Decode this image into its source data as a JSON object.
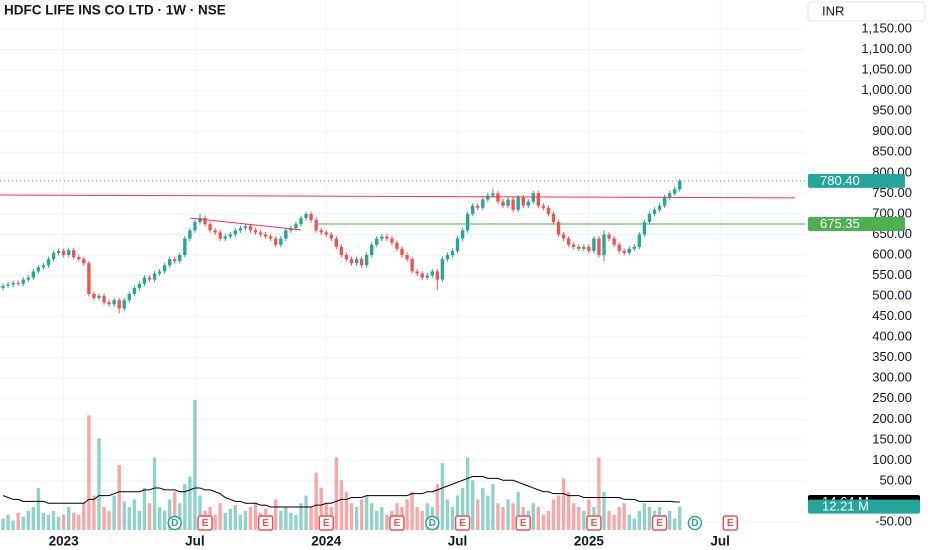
{
  "chart_data": {
    "type": "candlestick",
    "title": "HDFC LIFE INS CO LTD · 1W · NSE",
    "currency": "INR",
    "up_color": "#26a69a",
    "down_color": "#ef5350",
    "grid": true,
    "x": [
      0,
      1,
      2,
      3,
      4,
      5,
      6,
      7,
      8,
      9,
      10,
      11,
      12,
      13,
      14,
      15,
      16,
      17,
      18,
      19,
      20,
      21,
      22,
      23,
      24,
      25,
      26,
      27,
      28,
      29,
      30,
      31,
      32,
      33,
      34,
      35,
      36,
      37,
      38,
      39,
      40,
      41,
      42,
      43,
      44,
      45,
      46,
      47,
      48,
      49,
      50,
      51,
      52,
      53,
      54,
      55,
      56,
      57,
      58,
      59,
      60,
      61,
      62,
      63,
      64,
      65,
      66,
      67,
      68,
      69,
      70,
      71,
      72,
      73,
      74,
      75,
      76,
      77,
      78,
      79,
      80,
      81,
      82,
      83,
      84,
      85,
      86,
      87,
      88,
      89,
      90,
      91,
      92,
      93,
      94,
      95,
      96,
      97,
      98,
      99,
      100,
      101,
      102,
      103,
      104,
      105,
      106,
      107,
      108,
      109,
      110,
      111,
      112,
      113,
      114,
      115,
      116,
      117,
      118,
      119,
      120,
      121,
      122,
      123,
      124,
      125,
      126,
      127,
      128,
      129,
      130,
      131,
      132,
      133,
      134
    ],
    "open": [
      520,
      525,
      528,
      532,
      530,
      540,
      545,
      560,
      570,
      575,
      590,
      605,
      610,
      600,
      612,
      595,
      590,
      580,
      505,
      495,
      500,
      485,
      480,
      490,
      470,
      490,
      505,
      520,
      530,
      545,
      540,
      555,
      560,
      575,
      590,
      585,
      600,
      640,
      660,
      680,
      690,
      675,
      660,
      655,
      640,
      645,
      650,
      660,
      665,
      670,
      660,
      655,
      650,
      645,
      640,
      625,
      640,
      660,
      665,
      675,
      690,
      700,
      685,
      660,
      655,
      650,
      640,
      620,
      600,
      590,
      580,
      590,
      575,
      600,
      625,
      640,
      645,
      640,
      630,
      615,
      600,
      590,
      560,
      555,
      545,
      550,
      560,
      540,
      590,
      600,
      610,
      640,
      660,
      700,
      720,
      715,
      735,
      745,
      750,
      730,
      720,
      735,
      710,
      740,
      720,
      730,
      750,
      720,
      715,
      700,
      680,
      650,
      640,
      625,
      620,
      615,
      620,
      610,
      640,
      600,
      650,
      640,
      625,
      610,
      605,
      615,
      620,
      650,
      680,
      700,
      710,
      720,
      740,
      750,
      760
    ],
    "high": [
      531,
      534,
      538,
      538,
      546,
      551,
      566,
      576,
      581,
      596,
      611,
      616,
      616,
      618,
      618,
      601,
      596,
      586,
      511,
      506,
      506,
      491,
      496,
      496,
      496,
      511,
      526,
      536,
      551,
      551,
      561,
      566,
      581,
      596,
      596,
      606,
      646,
      666,
      686,
      700,
      696,
      681,
      666,
      661,
      651,
      656,
      666,
      671,
      676,
      676,
      666,
      661,
      656,
      651,
      646,
      646,
      666,
      671,
      681,
      696,
      706,
      706,
      691,
      666,
      661,
      656,
      646,
      626,
      606,
      596,
      596,
      596,
      606,
      631,
      646,
      651,
      651,
      646,
      636,
      621,
      606,
      596,
      566,
      561,
      556,
      566,
      566,
      596,
      606,
      616,
      646,
      666,
      706,
      726,
      726,
      741,
      751,
      762,
      756,
      736,
      741,
      741,
      746,
      746,
      736,
      756,
      756,
      726,
      721,
      706,
      686,
      656,
      646,
      631,
      626,
      626,
      626,
      646,
      646,
      660,
      656,
      646,
      631,
      616,
      621,
      626,
      656,
      686,
      706,
      716,
      726,
      746,
      756,
      766,
      786
    ],
    "low": [
      514,
      519,
      522,
      524,
      524,
      534,
      539,
      554,
      564,
      569,
      584,
      599,
      594,
      594,
      589,
      584,
      574,
      499,
      489,
      489,
      479,
      474,
      474,
      458,
      464,
      484,
      499,
      514,
      524,
      534,
      534,
      549,
      554,
      569,
      579,
      579,
      594,
      634,
      654,
      674,
      669,
      654,
      649,
      634,
      634,
      639,
      644,
      654,
      659,
      654,
      649,
      644,
      639,
      634,
      619,
      619,
      634,
      654,
      659,
      669,
      684,
      679,
      654,
      649,
      644,
      634,
      614,
      594,
      584,
      574,
      574,
      569,
      569,
      594,
      619,
      634,
      634,
      624,
      609,
      594,
      584,
      554,
      549,
      539,
      539,
      544,
      515,
      534,
      584,
      594,
      604,
      634,
      654,
      694,
      709,
      709,
      729,
      739,
      724,
      714,
      714,
      704,
      704,
      714,
      714,
      724,
      714,
      709,
      694,
      674,
      644,
      634,
      619,
      614,
      609,
      609,
      604,
      604,
      594,
      585,
      634,
      619,
      604,
      599,
      599,
      609,
      614,
      644,
      674,
      694,
      704,
      714,
      734,
      744,
      754
    ],
    "close": [
      525,
      528,
      532,
      530,
      540,
      545,
      560,
      570,
      575,
      590,
      605,
      610,
      600,
      612,
      595,
      590,
      580,
      505,
      495,
      500,
      485,
      480,
      490,
      470,
      490,
      505,
      520,
      530,
      545,
      540,
      555,
      560,
      575,
      590,
      585,
      600,
      640,
      660,
      680,
      690,
      675,
      660,
      655,
      640,
      645,
      650,
      660,
      665,
      670,
      660,
      655,
      650,
      645,
      640,
      625,
      640,
      660,
      665,
      675,
      690,
      700,
      685,
      660,
      655,
      650,
      640,
      620,
      600,
      590,
      580,
      590,
      575,
      600,
      625,
      640,
      645,
      640,
      630,
      615,
      600,
      590,
      560,
      555,
      545,
      550,
      560,
      540,
      590,
      600,
      610,
      640,
      660,
      700,
      720,
      715,
      735,
      745,
      750,
      730,
      720,
      735,
      710,
      740,
      720,
      730,
      750,
      720,
      715,
      700,
      680,
      650,
      640,
      625,
      620,
      615,
      620,
      610,
      640,
      600,
      650,
      640,
      625,
      610,
      605,
      615,
      620,
      650,
      680,
      700,
      710,
      720,
      740,
      750,
      760,
      780.4
    ],
    "xlim": [
      -0.6,
      158.8
    ],
    "xticks": [
      {
        "value": 12,
        "label": "2023"
      },
      {
        "value": 38,
        "label": "Jul"
      },
      {
        "value": 64,
        "label": "2024"
      },
      {
        "value": 90,
        "label": "Jul"
      },
      {
        "value": 116,
        "label": "2025"
      },
      {
        "value": 142,
        "label": "Jul"
      }
    ],
    "ylim": [
      -69.3,
      1220.6
    ],
    "yticks": [
      {
        "value": 1150,
        "label": "1,150.00"
      },
      {
        "value": 1100,
        "label": "1,100.00"
      },
      {
        "value": 1050,
        "label": "1,050.00"
      },
      {
        "value": 1000,
        "label": "1,000.00"
      },
      {
        "value": 950,
        "label": "950.00"
      },
      {
        "value": 900,
        "label": "900.00"
      },
      {
        "value": 850,
        "label": "850.00"
      },
      {
        "value": 800,
        "label": "800.00"
      },
      {
        "value": 750,
        "label": "750.00"
      },
      {
        "value": 700,
        "label": "700.00"
      },
      {
        "value": 650,
        "label": "650.00"
      },
      {
        "value": 600,
        "label": "600.00"
      },
      {
        "value": 550,
        "label": "550.00"
      },
      {
        "value": 500,
        "label": "500.00"
      },
      {
        "value": 450,
        "label": "450.00"
      },
      {
        "value": 400,
        "label": "400.00"
      },
      {
        "value": 350,
        "label": "350.00"
      },
      {
        "value": 300,
        "label": "300.00"
      },
      {
        "value": 250,
        "label": "250.00"
      },
      {
        "value": 200,
        "label": "200.00"
      },
      {
        "value": 150,
        "label": "150.00"
      },
      {
        "value": 100,
        "label": "100.00"
      },
      {
        "value": 50,
        "label": "50.00"
      },
      {
        "value": -50,
        "label": "-50.00"
      }
    ],
    "price_labels": [
      {
        "value": 780.4,
        "label": "780.40",
        "color": "#26a69a"
      },
      {
        "value": 675.35,
        "label": "675.35",
        "color": "#4caf50"
      }
    ],
    "lines": [
      {
        "color": "#f23645",
        "x": [
          -0.6,
          156.8
        ],
        "y": [
          746,
          739
        ]
      },
      {
        "color": "#f23645",
        "x": [
          37,
          59
        ],
        "y": [
          690,
          661
        ]
      },
      {
        "color": "#4caf50",
        "x": [
          62,
          158.8
        ],
        "y": [
          675.35,
          675.35
        ]
      }
    ],
    "volume": {
      "values": [
        6,
        8,
        5,
        9,
        7,
        10,
        12,
        22,
        9,
        8,
        10,
        7,
        8,
        12,
        9,
        8,
        14,
        60,
        18,
        48,
        12,
        10,
        18,
        34,
        15,
        12,
        16,
        10,
        22,
        14,
        38,
        12,
        10,
        16,
        20,
        14,
        24,
        28,
        68,
        18,
        10,
        12,
        8,
        14,
        9,
        11,
        13,
        8,
        10,
        12,
        14,
        9,
        11,
        8,
        16,
        10,
        12,
        9,
        8,
        14,
        18,
        12,
        30,
        22,
        14,
        12,
        38,
        26,
        20,
        14,
        12,
        16,
        18,
        14,
        10,
        12,
        8,
        10,
        14,
        12,
        16,
        20,
        12,
        10,
        14,
        12,
        24,
        35,
        16,
        12,
        18,
        22,
        38,
        26,
        16,
        22,
        18,
        24,
        14,
        12,
        16,
        14,
        20,
        12,
        10,
        14,
        12,
        8,
        10,
        16,
        18,
        27,
        20,
        14,
        12,
        10,
        16,
        12,
        38,
        20,
        10,
        8,
        12,
        14,
        8,
        6,
        10,
        14,
        12,
        10,
        12,
        8,
        10,
        6,
        12.21
      ],
      "ma": [
        18,
        17,
        16,
        16,
        15,
        15,
        15,
        15,
        15,
        14,
        14,
        14,
        14,
        14,
        14,
        14,
        14,
        16,
        16,
        18,
        18,
        18,
        19,
        20,
        20,
        20,
        20,
        20,
        21,
        21,
        22,
        22,
        21,
        21,
        21,
        20,
        20,
        21,
        22,
        22,
        21,
        21,
        20,
        19,
        17,
        16,
        15,
        15,
        14,
        14,
        14,
        13,
        13,
        12,
        12,
        12,
        12,
        12,
        12,
        12,
        12,
        12,
        13,
        13,
        14,
        14,
        15,
        16,
        16,
        17,
        17,
        17,
        18,
        18,
        18,
        18,
        18,
        18,
        18,
        18,
        18,
        19,
        19,
        19,
        20,
        20,
        21,
        22,
        23,
        24,
        25,
        26,
        27,
        28,
        28,
        28,
        27,
        27,
        27,
        26,
        26,
        26,
        25,
        24,
        23,
        22,
        21,
        20,
        20,
        19,
        19,
        19,
        18,
        18,
        18,
        17,
        17,
        17,
        17,
        17,
        17,
        17,
        17,
        16,
        16,
        16,
        15,
        15,
        15,
        15,
        15,
        15,
        15,
        14.7,
        14.64
      ],
      "ma_color": "#000000",
      "labels": [
        {
          "value": 14.64,
          "label": "14.64 M",
          "color": "#000000"
        },
        {
          "value": 12.21,
          "label": "12.21 M",
          "color": "#26a69a"
        }
      ]
    },
    "events": {
      "x": [
        34,
        40,
        52,
        64,
        78,
        85,
        91,
        103,
        117,
        130,
        137,
        144
      ],
      "labels": [
        "D",
        "E",
        "E",
        "E",
        "E",
        "D",
        "E",
        "E",
        "E",
        "E",
        "D",
        "E"
      ]
    }
  }
}
